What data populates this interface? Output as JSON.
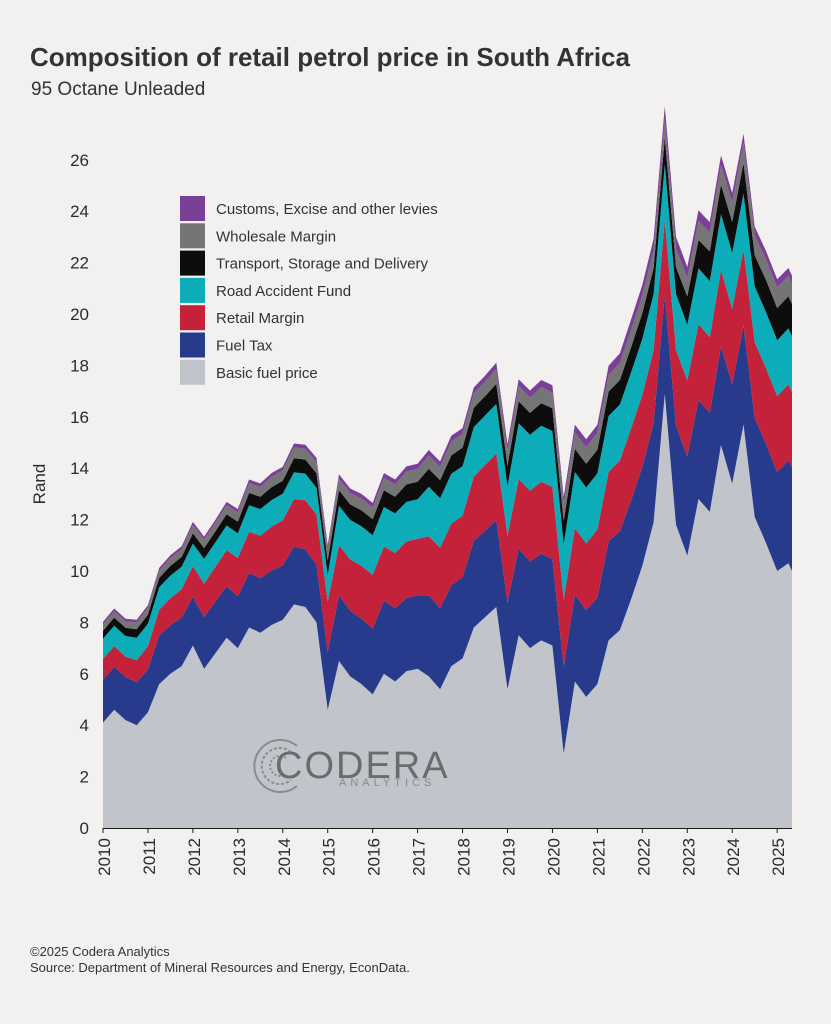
{
  "title": "Composition of retail petrol price in South Africa",
  "subtitle": "95 Octane Unleaded",
  "footer": {
    "copyright": "©2025 Codera Analytics",
    "source": "Source: Department of Mineral Resources and Energy, EconData."
  },
  "logo": {
    "name": "CODERA",
    "tagline": "ANALYTICS"
  },
  "chart_data": {
    "type": "area",
    "stacked": true,
    "ylabel": "Rand",
    "xlabel": "",
    "ylim": [
      0,
      27
    ],
    "yticks": [
      0,
      2,
      4,
      6,
      8,
      10,
      12,
      14,
      16,
      18,
      20,
      22,
      24,
      26
    ],
    "xticks": [
      "2010",
      "2011",
      "2012",
      "2013",
      "2014",
      "2015",
      "2016",
      "2017",
      "2018",
      "2019",
      "2020",
      "2021",
      "2022",
      "2023",
      "2024",
      "2025"
    ],
    "x": [
      2010.0,
      2010.25,
      2010.5,
      2010.75,
      2011.0,
      2011.25,
      2011.5,
      2011.75,
      2012.0,
      2012.25,
      2012.5,
      2012.75,
      2013.0,
      2013.25,
      2013.5,
      2013.75,
      2014.0,
      2014.25,
      2014.5,
      2014.75,
      2015.0,
      2015.25,
      2015.5,
      2015.75,
      2016.0,
      2016.25,
      2016.5,
      2016.75,
      2017.0,
      2017.25,
      2017.5,
      2017.75,
      2018.0,
      2018.25,
      2018.5,
      2018.75,
      2019.0,
      2019.25,
      2019.5,
      2019.75,
      2020.0,
      2020.25,
      2020.5,
      2020.75,
      2021.0,
      2021.25,
      2021.5,
      2021.75,
      2022.0,
      2022.25,
      2022.5,
      2022.75,
      2023.0,
      2023.25,
      2023.5,
      2023.75,
      2024.0,
      2024.25,
      2024.5,
      2024.75,
      2025.0,
      2025.25,
      2025.33
    ],
    "series": [
      {
        "name": "Basic fuel price",
        "color": "#c1c5cb",
        "values": [
          4.1,
          4.6,
          4.2,
          4.0,
          4.5,
          5.6,
          6.0,
          6.3,
          7.1,
          6.2,
          6.8,
          7.4,
          7.0,
          7.8,
          7.6,
          7.9,
          8.1,
          8.7,
          8.6,
          8.0,
          4.6,
          6.5,
          5.9,
          5.6,
          5.2,
          6.0,
          5.7,
          6.1,
          6.2,
          5.9,
          5.4,
          6.3,
          6.6,
          7.8,
          8.2,
          8.6,
          5.4,
          7.5,
          7.0,
          7.3,
          7.1,
          2.9,
          5.7,
          5.1,
          5.6,
          7.3,
          7.7,
          8.9,
          10.2,
          11.9,
          16.9,
          11.8,
          10.6,
          12.8,
          12.3,
          14.9,
          13.4,
          15.7,
          12.1,
          11.1,
          10.0,
          10.3,
          10.0
        ]
      },
      {
        "name": "Fuel Tax",
        "color": "#283a8c",
        "values": [
          1.67,
          1.67,
          1.67,
          1.67,
          1.67,
          1.89,
          1.89,
          1.89,
          1.89,
          2.01,
          2.01,
          2.01,
          2.01,
          2.12,
          2.12,
          2.12,
          2.12,
          2.25,
          2.25,
          2.25,
          2.25,
          2.55,
          2.55,
          2.55,
          2.55,
          2.85,
          2.85,
          2.85,
          2.85,
          3.15,
          3.15,
          3.15,
          3.15,
          3.37,
          3.37,
          3.37,
          3.37,
          3.37,
          3.37,
          3.37,
          3.37,
          3.37,
          3.37,
          3.37,
          3.37,
          3.85,
          3.85,
          3.85,
          3.85,
          3.85,
          3.85,
          3.85,
          3.85,
          3.85,
          3.85,
          3.85,
          3.85,
          3.85,
          3.85,
          3.85,
          3.85,
          4.01,
          4.01
        ]
      },
      {
        "name": "Retail Margin",
        "color": "#c4213a",
        "values": [
          0.8,
          0.8,
          0.8,
          0.85,
          0.9,
          1.0,
          1.05,
          1.1,
          1.2,
          1.3,
          1.35,
          1.4,
          1.5,
          1.6,
          1.65,
          1.7,
          1.75,
          1.85,
          1.9,
          1.95,
          1.95,
          1.95,
          2.0,
          2.05,
          2.1,
          2.1,
          2.15,
          2.2,
          2.2,
          2.3,
          2.35,
          2.4,
          2.4,
          2.5,
          2.55,
          2.6,
          2.6,
          2.7,
          2.75,
          2.8,
          2.8,
          2.6,
          2.6,
          2.6,
          2.65,
          2.7,
          2.75,
          2.8,
          2.8,
          2.85,
          2.9,
          2.95,
          2.95,
          2.95,
          2.95,
          2.95,
          2.95,
          2.95,
          2.95,
          2.95,
          2.95,
          2.95,
          2.95
        ]
      },
      {
        "name": "Road Accident Fund",
        "color": "#0cacb9",
        "values": [
          0.8,
          0.8,
          0.8,
          0.88,
          0.88,
          0.88,
          0.88,
          0.88,
          0.88,
          0.96,
          0.96,
          0.96,
          0.96,
          1.04,
          1.04,
          1.04,
          1.04,
          1.04,
          1.04,
          1.04,
          1.04,
          1.54,
          1.54,
          1.54,
          1.54,
          1.54,
          1.54,
          1.54,
          1.54,
          1.93,
          1.93,
          1.93,
          1.93,
          1.93,
          1.93,
          1.93,
          1.93,
          2.18,
          2.18,
          2.18,
          2.18,
          2.18,
          2.18,
          2.18,
          2.18,
          2.18,
          2.18,
          2.18,
          2.18,
          2.18,
          2.18,
          2.18,
          2.18,
          2.18,
          2.18,
          2.18,
          2.18,
          2.18,
          2.18,
          2.18,
          2.18,
          2.18,
          2.18
        ]
      },
      {
        "name": "Transport, Storage and Delivery",
        "color": "#0d0d0d",
        "values": [
          0.3,
          0.32,
          0.32,
          0.33,
          0.35,
          0.36,
          0.38,
          0.38,
          0.4,
          0.42,
          0.42,
          0.44,
          0.45,
          0.48,
          0.48,
          0.5,
          0.5,
          0.55,
          0.55,
          0.56,
          0.56,
          0.6,
          0.6,
          0.62,
          0.62,
          0.65,
          0.65,
          0.68,
          0.68,
          0.7,
          0.7,
          0.72,
          0.72,
          0.75,
          0.75,
          0.78,
          0.8,
          0.85,
          0.85,
          0.88,
          0.88,
          0.9,
          0.9,
          0.92,
          0.92,
          0.95,
          0.95,
          0.98,
          1.0,
          1.0,
          1.05,
          1.05,
          1.1,
          1.1,
          1.15,
          1.15,
          1.2,
          1.2,
          1.2,
          1.25,
          1.25,
          1.25,
          1.25
        ]
      },
      {
        "name": "Wholesale Margin",
        "color": "#757575",
        "values": [
          0.25,
          0.25,
          0.25,
          0.27,
          0.27,
          0.28,
          0.3,
          0.3,
          0.32,
          0.33,
          0.33,
          0.35,
          0.36,
          0.38,
          0.38,
          0.4,
          0.4,
          0.42,
          0.42,
          0.44,
          0.44,
          0.45,
          0.45,
          0.46,
          0.46,
          0.48,
          0.48,
          0.5,
          0.5,
          0.52,
          0.52,
          0.54,
          0.54,
          0.56,
          0.56,
          0.58,
          0.58,
          0.6,
          0.6,
          0.62,
          0.62,
          0.64,
          0.64,
          0.65,
          0.65,
          0.66,
          0.66,
          0.68,
          0.68,
          0.7,
          0.7,
          0.72,
          0.72,
          0.74,
          0.74,
          0.76,
          0.76,
          0.78,
          0.78,
          0.8,
          0.8,
          0.8,
          0.8
        ]
      },
      {
        "name": "Customs, Excise and other levies",
        "color": "#7b3f98",
        "values": [
          0.1,
          0.1,
          0.1,
          0.1,
          0.1,
          0.11,
          0.11,
          0.11,
          0.12,
          0.12,
          0.12,
          0.13,
          0.13,
          0.14,
          0.14,
          0.15,
          0.15,
          0.15,
          0.15,
          0.16,
          0.16,
          0.17,
          0.17,
          0.18,
          0.18,
          0.19,
          0.19,
          0.2,
          0.2,
          0.21,
          0.21,
          0.22,
          0.22,
          0.23,
          0.24,
          0.25,
          0.25,
          0.26,
          0.27,
          0.28,
          0.28,
          0.29,
          0.3,
          0.31,
          0.32,
          0.35,
          0.38,
          0.4,
          0.42,
          0.45,
          0.5,
          0.45,
          0.43,
          0.42,
          0.4,
          0.38,
          0.36,
          0.35,
          0.34,
          0.33,
          0.32,
          0.3,
          0.3
        ]
      }
    ],
    "legend": {
      "position": "top-left",
      "order": [
        "Customs, Excise and other levies",
        "Wholesale Margin",
        "Transport, Storage and Delivery",
        "Road Accident Fund",
        "Retail Margin",
        "Fuel Tax",
        "Basic fuel price"
      ]
    },
    "grid": false
  }
}
